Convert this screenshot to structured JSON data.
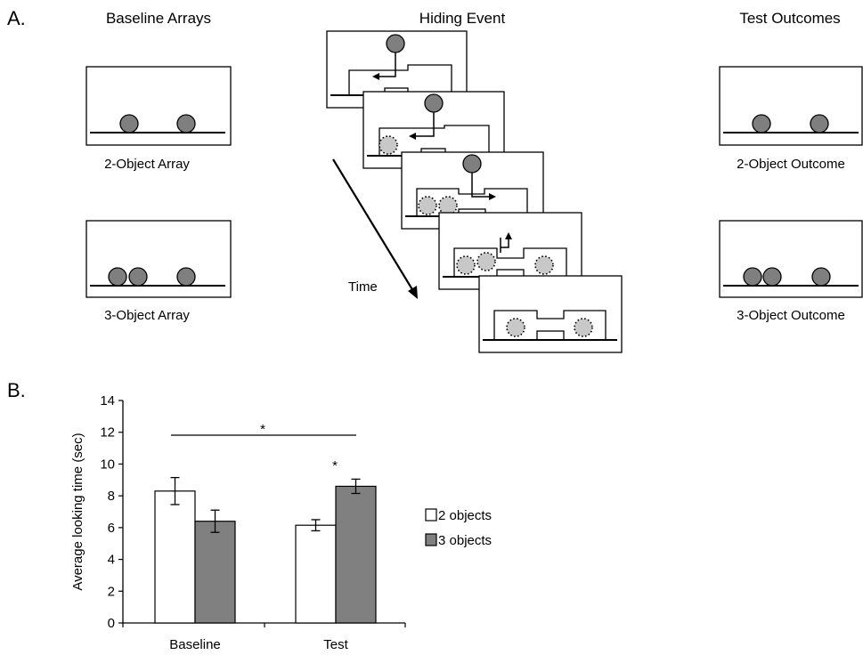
{
  "panel_a": {
    "label": "A.",
    "baseline_heading": "Baseline Arrays",
    "hiding_heading": "Hiding Event",
    "outcomes_heading": "Test Outcomes",
    "baseline_two_caption": "2-Object Array",
    "baseline_three_caption": "3-Object Array",
    "outcome_two_caption": "2-Object Outcome",
    "outcome_three_caption": "3-Object Outcome",
    "time_label": "Time"
  },
  "panel_b": {
    "label": "B."
  },
  "chart_data": {
    "type": "bar",
    "title": "",
    "xlabel": "",
    "ylabel": "Average looking time (sec)",
    "categories": [
      "Baseline",
      "Test"
    ],
    "series": [
      {
        "name": "2 objects",
        "values": [
          8.3,
          6.15
        ],
        "errors": [
          0.85,
          0.35
        ],
        "color": "#ffffff"
      },
      {
        "name": "3 objects",
        "values": [
          6.4,
          8.6
        ],
        "errors": [
          0.7,
          0.45
        ],
        "color": "#808080"
      }
    ],
    "ylim": [
      0,
      14
    ],
    "yticks": [
      0,
      2,
      4,
      6,
      8,
      10,
      12,
      14
    ],
    "grid": false,
    "legend": "right",
    "annotations": [
      {
        "text": "*",
        "between": [
          "Baseline",
          "Test"
        ]
      },
      {
        "text": "*",
        "above": "Test"
      }
    ]
  }
}
